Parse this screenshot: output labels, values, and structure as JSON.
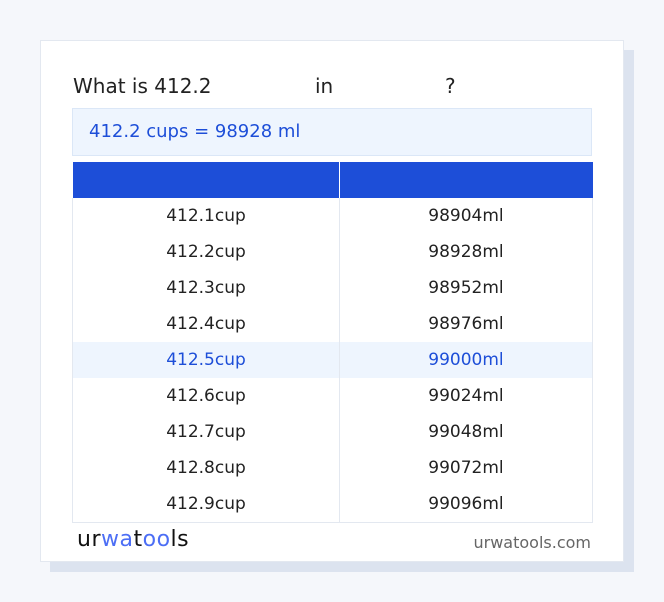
{
  "title": {
    "prefix": "What is 412.2",
    "middle": "in",
    "suffix": "?"
  },
  "result": "412.2 cups = 98928 ml",
  "table": {
    "headers": [
      "",
      ""
    ],
    "rows": [
      [
        "412.1cup",
        "98904ml"
      ],
      [
        "412.2cup",
        "98928ml"
      ],
      [
        "412.3cup",
        "98952ml"
      ],
      [
        "412.4cup",
        "98976ml"
      ],
      [
        "412.5cup",
        "99000ml"
      ],
      [
        "412.6cup",
        "99024ml"
      ],
      [
        "412.7cup",
        "99048ml"
      ],
      [
        "412.8cup",
        "99072ml"
      ],
      [
        "412.9cup",
        "99096ml"
      ]
    ],
    "highlighted_row": 4
  },
  "footer": {
    "logo": "urwatools",
    "site": "urwatools.com"
  },
  "colors": {
    "accent": "#1d4ed8",
    "highlight_bg": "#eef5fe"
  }
}
